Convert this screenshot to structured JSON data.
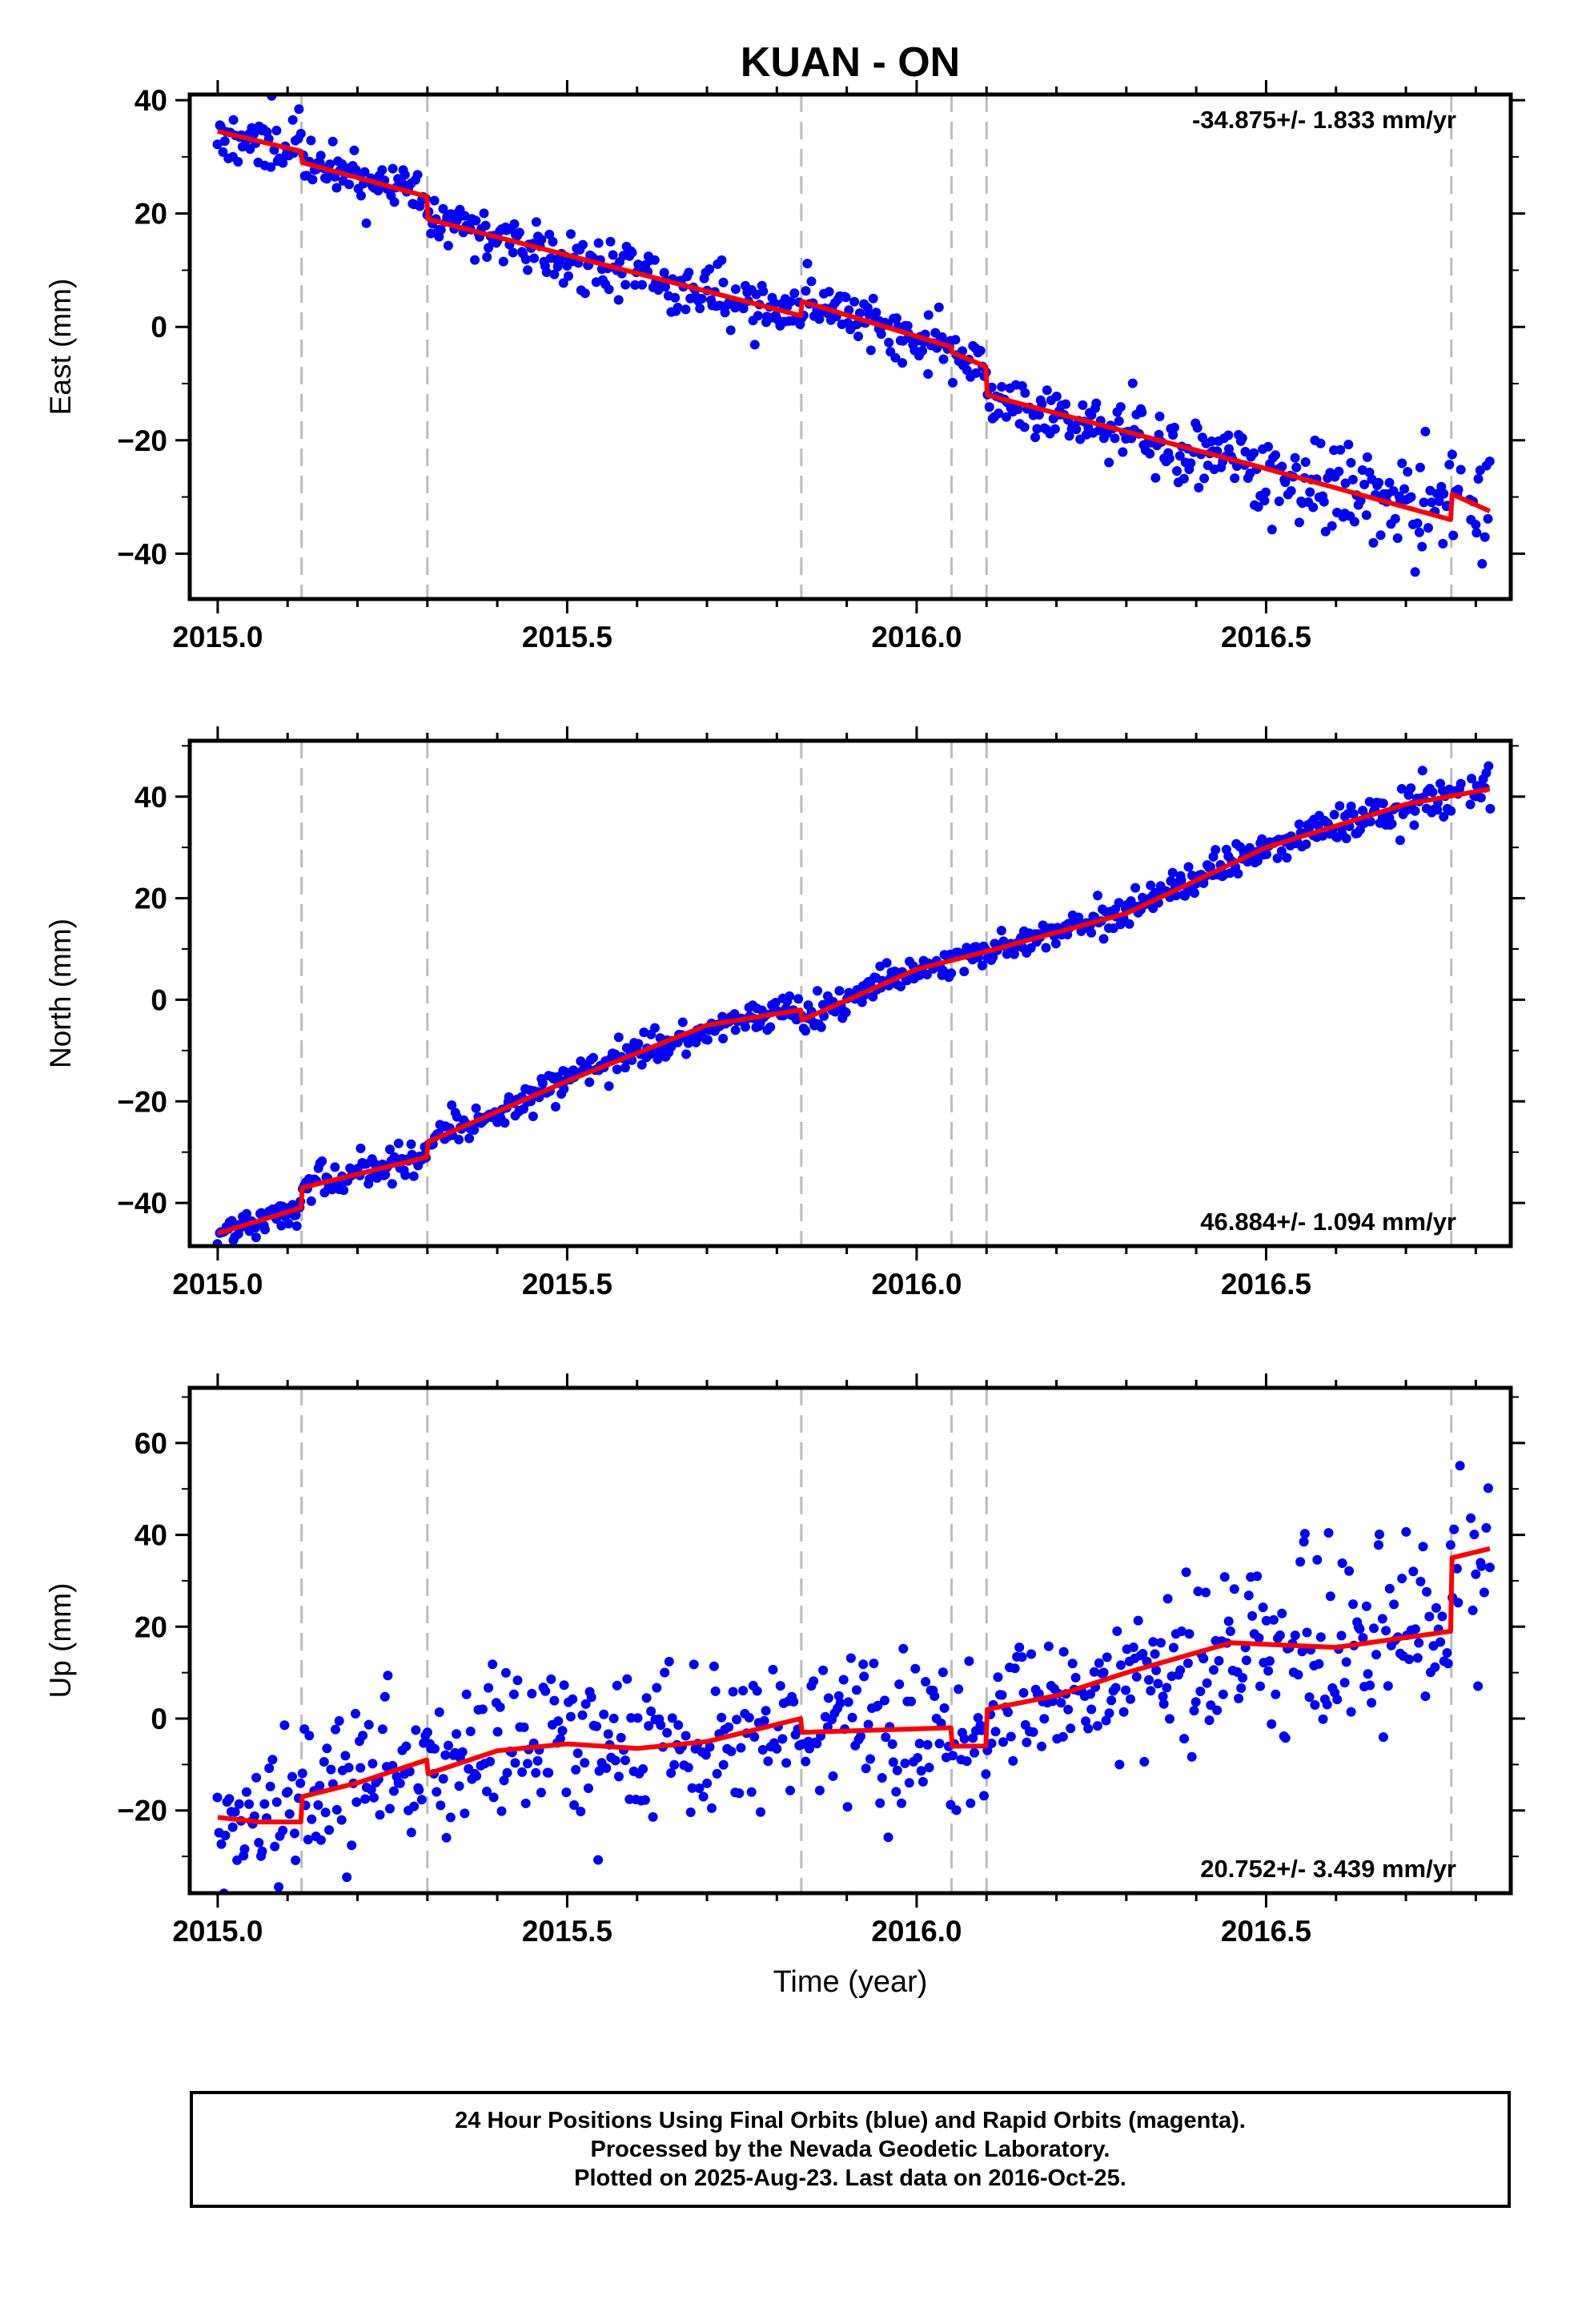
{
  "title": "KUAN - ON",
  "x_axis_label": "Time (year)",
  "x_ticks": [
    "2015.0",
    "2015.5",
    "2016.0",
    "2016.5"
  ],
  "colors": {
    "observations": "#0000ff",
    "model": "#ff0000",
    "events": "#bbbbbb"
  },
  "footer": {
    "line1": "24 Hour Positions Using Final Orbits (blue) and Rapid Orbits (magenta).",
    "line2": "Processed by the Nevada Geodetic Laboratory.",
    "line3": "Plotted on 2025-Aug-23. Last data on 2016-Oct-25."
  },
  "chart_data": [
    {
      "type": "scatter",
      "ylabel": "East (mm)",
      "xlim": [
        2014.96,
        2016.85
      ],
      "ylim": [
        -48,
        41
      ],
      "y_ticks": [
        40,
        20,
        0,
        -20,
        -40
      ],
      "rate_label": "-34.875+/- 1.833 mm/yr",
      "rate_position": "top-right",
      "event_lines": [
        2015.12,
        2015.3,
        2015.835,
        2016.05,
        2016.1,
        2016.765
      ],
      "model": {
        "name": "",
        "x": [
          2015.0,
          2015.119,
          2015.121,
          2015.299,
          2015.301,
          2015.834,
          2015.836,
          2016.049,
          2016.051,
          2016.099,
          2016.101,
          2016.5,
          2016.764,
          2016.766,
          2016.82
        ],
        "y": [
          34.5,
          31.0,
          29.0,
          23.0,
          19.0,
          2.0,
          4.5,
          -3.5,
          -4.5,
          -7.0,
          -12.0,
          -25.0,
          -34.0,
          -29.5,
          -32.5
        ]
      },
      "observations": {
        "name": "",
        "n": 700,
        "x_start": 2015.0,
        "x_end": 2016.82,
        "x_gap": [
          2016.78,
          2016.79
        ],
        "scatter_mm": 2.4,
        "noise_growth_after": 2016.2,
        "late_scatter_mm": 5.0,
        "seed": 11
      }
    },
    {
      "type": "scatter",
      "ylabel": "North (mm)",
      "xlim": [
        2014.96,
        2016.85
      ],
      "ylim": [
        -48.5,
        51
      ],
      "y_ticks": [
        40,
        20,
        0,
        -20,
        -40
      ],
      "rate_label": "46.884+/- 1.094 mm/yr",
      "rate_position": "bottom-right",
      "event_lines": [
        2015.12,
        2015.3,
        2015.835,
        2016.05,
        2016.1,
        2016.765
      ],
      "model": {
        "name": "",
        "x": [
          2015.0,
          2015.119,
          2015.121,
          2015.299,
          2015.301,
          2015.5,
          2015.7,
          2015.834,
          2015.836,
          2016.0,
          2016.1,
          2016.3,
          2016.5,
          2016.7,
          2016.82
        ],
        "y": [
          -46,
          -41,
          -37,
          -31,
          -28,
          -16,
          -5,
          -2,
          -4,
          6,
          9.5,
          17,
          30,
          38.5,
          41.5
        ]
      },
      "observations": {
        "name": "",
        "n": 720,
        "x_start": 2015.0,
        "x_end": 2016.82,
        "x_gap": [
          2016.78,
          2016.79
        ],
        "scatter_mm": 1.6,
        "noise_growth_after": 2016.6,
        "late_scatter_mm": 2.5,
        "seed": 23
      }
    },
    {
      "type": "scatter",
      "ylabel": "Up (mm)",
      "xlim": [
        2014.96,
        2016.85
      ],
      "ylim": [
        -38,
        72
      ],
      "y_ticks": [
        60,
        40,
        20,
        0,
        -20
      ],
      "rate_label": "20.752+/- 3.439 mm/yr",
      "rate_position": "bottom-right",
      "event_lines": [
        2015.12,
        2015.3,
        2015.835,
        2016.05,
        2016.1,
        2016.765
      ],
      "model": {
        "name": "",
        "x": [
          2015.0,
          2015.06,
          2015.119,
          2015.121,
          2015.2,
          2015.299,
          2015.301,
          2015.4,
          2015.5,
          2015.6,
          2015.7,
          2015.834,
          2015.836,
          2016.049,
          2016.051,
          2016.099,
          2016.101,
          2016.2,
          2016.3,
          2016.45,
          2016.6,
          2016.764,
          2016.766,
          2016.82
        ],
        "y": [
          -21.5,
          -22.5,
          -22.5,
          -17,
          -14,
          -9,
          -12,
          -7,
          -5.5,
          -6.5,
          -5,
          0,
          -3,
          -2,
          -6,
          -6,
          2,
          5,
          10,
          16.5,
          15.5,
          19,
          35,
          37
        ]
      },
      "observations": {
        "name": "",
        "n": 650,
        "x_start": 2015.0,
        "x_end": 2016.82,
        "x_gap": [
          2016.78,
          2016.79
        ],
        "scatter_mm": 8.0,
        "noise_growth_after": 2016.3,
        "late_scatter_mm": 12.0,
        "seed": 37
      }
    }
  ]
}
